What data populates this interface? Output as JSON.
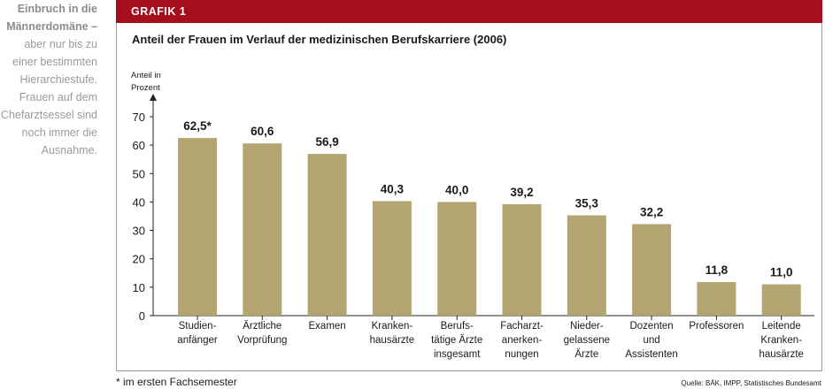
{
  "sidebar": {
    "headline": "Einbruch in die Männerdomäne –",
    "body": "aber nur bis zu einer bestimmten Hierarchiestufe. Frauen auf dem Chefarztsessel sind noch immer die Ausnahme."
  },
  "banner": {
    "label": "GRAFIK 1"
  },
  "colors": {
    "banner": "#a50f1c",
    "bar": "#b3a571",
    "axis": "#222222"
  },
  "chart_data": {
    "type": "bar",
    "title": "Anteil der Frauen im Verlauf der medizinischen Berufskarriere (2006)",
    "ylabel": "Anteil in Prozent",
    "ylabel_lines": [
      "Anteil in",
      "Prozent"
    ],
    "xlabel": "",
    "ylim": [
      0,
      70
    ],
    "yticks": [
      0,
      10,
      20,
      30,
      40,
      50,
      60,
      70
    ],
    "categories": [
      [
        "Studien-",
        "anfänger"
      ],
      [
        "Ärztliche",
        "Vorprüfung"
      ],
      [
        "Examen"
      ],
      [
        "Kranken-",
        "hausärzte"
      ],
      [
        "Berufs-",
        "tätige Ärzte",
        "insgesamt"
      ],
      [
        "Facharzt-",
        "anerken-",
        "nungen"
      ],
      [
        "Nieder-",
        "gelassene",
        "Ärzte"
      ],
      [
        "Dozenten",
        "und",
        "Assistenten"
      ],
      [
        "Professoren"
      ],
      [
        "Leitende",
        "Kranken-",
        "hausärzte"
      ]
    ],
    "values": [
      62.5,
      60.6,
      56.9,
      40.3,
      40.0,
      39.2,
      35.3,
      32.2,
      11.8,
      11.0
    ],
    "value_labels": [
      "62,5*",
      "60,6",
      "56,9",
      "40,3",
      "40,0",
      "39,2",
      "35,3",
      "32,2",
      "11,8",
      "11,0"
    ]
  },
  "footnote": "* im ersten Fachsemester",
  "source": "Quelle: BÄK, IMPP, Statistisches Bundesamt"
}
